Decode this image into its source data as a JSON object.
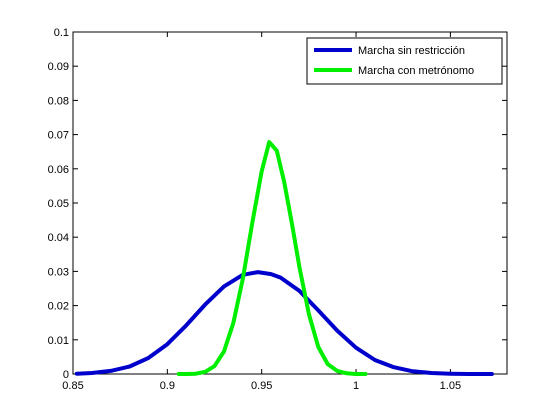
{
  "chart_data": {
    "type": "line",
    "title": "",
    "xlabel": "",
    "ylabel": "",
    "xlim": [
      0.85,
      1.08
    ],
    "ylim": [
      0,
      0.1
    ],
    "grid": false,
    "legend_position": "top-right",
    "x_ticks": [
      0.85,
      0.9,
      0.95,
      1.0,
      1.05
    ],
    "x_tick_labels": [
      "0.85",
      "0.9",
      "0.95",
      "1",
      "1.05"
    ],
    "y_ticks": [
      0,
      0.01,
      0.02,
      0.03,
      0.04,
      0.05,
      0.06,
      0.07,
      0.08,
      0.09,
      0.1
    ],
    "y_tick_labels": [
      "0",
      "0.01",
      "0.02",
      "0.03",
      "0.04",
      "0.05",
      "0.06",
      "0.07",
      "0.08",
      "0.09",
      "0.1"
    ],
    "series": [
      {
        "name": "Marcha sin restricción",
        "color": "#0000cc",
        "x": [
          0.852,
          0.86,
          0.87,
          0.88,
          0.89,
          0.9,
          0.91,
          0.92,
          0.93,
          0.94,
          0.948,
          0.955,
          0.96,
          0.97,
          0.98,
          0.99,
          1.0,
          1.01,
          1.02,
          1.03,
          1.04,
          1.05,
          1.06,
          1.072
        ],
        "y": [
          0.0001,
          0.0003,
          0.0009,
          0.0022,
          0.0047,
          0.0087,
          0.0142,
          0.0203,
          0.0256,
          0.029,
          0.0298,
          0.0292,
          0.0282,
          0.0243,
          0.0186,
          0.0127,
          0.0077,
          0.0041,
          0.002,
          0.0008,
          0.0003,
          0.0001,
          0.0,
          0.0
        ]
      },
      {
        "name": "Marcha con metrónomo",
        "color": "#00ee00",
        "x": [
          0.906,
          0.91,
          0.915,
          0.92,
          0.925,
          0.93,
          0.935,
          0.94,
          0.945,
          0.95,
          0.954,
          0.958,
          0.962,
          0.966,
          0.97,
          0.975,
          0.98,
          0.985,
          0.99,
          0.995,
          1.0,
          1.005
        ],
        "y": [
          0.0,
          0.0,
          0.0001,
          0.0006,
          0.0023,
          0.0066,
          0.015,
          0.0278,
          0.0442,
          0.0593,
          0.0678,
          0.0653,
          0.056,
          0.044,
          0.0313,
          0.0175,
          0.0079,
          0.0029,
          0.0009,
          0.0002,
          0.0,
          0.0
        ]
      }
    ]
  }
}
